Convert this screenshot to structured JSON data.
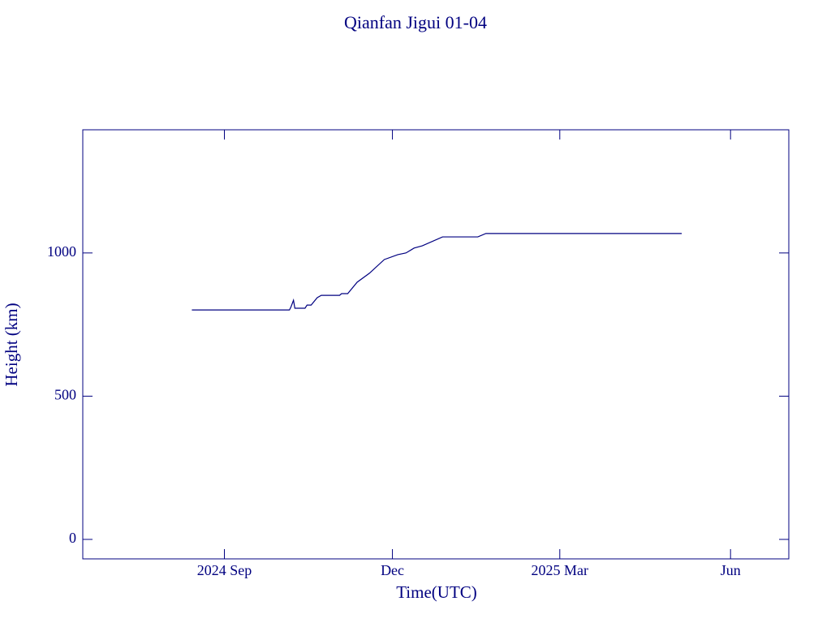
{
  "chart_data": {
    "type": "line",
    "title": "Qianfan Jigui 01-04",
    "xlabel": "Time(UTC)",
    "ylabel": "Height (km)",
    "color": "#000080",
    "x": [
      2024.619,
      2024.763,
      2024.765,
      2024.769,
      2024.771,
      2024.786,
      2024.789,
      2024.795,
      2024.804,
      2024.81,
      2024.837,
      2024.84,
      2024.849,
      2024.863,
      2024.881,
      2024.903,
      2024.923,
      2024.935,
      2024.947,
      2024.959,
      2024.989,
      2025.041,
      2025.053,
      2025.342
    ],
    "values": [
      801,
      801,
      810,
      835,
      807,
      807,
      818,
      818,
      844,
      852,
      852,
      858,
      858,
      898,
      929,
      977,
      994,
      1000,
      1017,
      1025,
      1056,
      1056,
      1068,
      1068
    ],
    "xlim": [
      2024.458,
      2025.5
    ],
    "xticks": [
      {
        "value": 2024.667,
        "label": "2024 Sep"
      },
      {
        "value": 2024.915,
        "label": "Dec"
      },
      {
        "value": 2025.162,
        "label": "2025 Mar"
      },
      {
        "value": 2025.414,
        "label": "Jun"
      }
    ],
    "ylim": [
      -68,
      1430
    ],
    "yticks": [
      0,
      500,
      1000
    ]
  }
}
